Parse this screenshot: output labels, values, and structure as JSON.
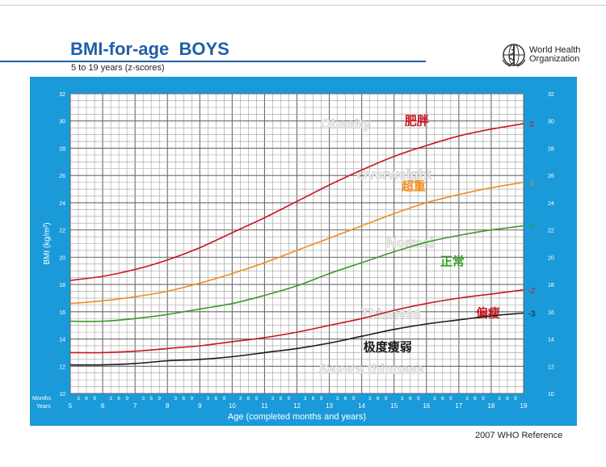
{
  "header": {
    "title": "BMI-for-age  BOYS",
    "subtitle": "5 to 19 years (z-scores)",
    "org_line1": "World Health",
    "org_line2": "Organization",
    "logo_icon": "who-emblem-icon"
  },
  "footer": {
    "reference": "2007  WHO Reference"
  },
  "colors": {
    "panel": "#1a9ad9",
    "grid": "#9e9e9e",
    "z2": "#c8161e",
    "z1": "#f28a1c",
    "z0": "#3a9a2a",
    "zm2": "#c8161e",
    "zm3": "#1a1a1a",
    "watermark": "#d0d0d0"
  },
  "chart_data": {
    "type": "line",
    "title": "BMI-for-age  BOYS",
    "subtitle": "5 to 19 years (z-scores)",
    "xlabel": "Age (completed months and years)",
    "ylabel": "BMI (kg/m²)",
    "xlim": [
      5,
      19
    ],
    "ylim": [
      10,
      32
    ],
    "grid": true,
    "x_ticks": [
      "5",
      "6",
      "7",
      "8",
      "9",
      "10",
      "11",
      "12",
      "13",
      "14",
      "15",
      "16",
      "17",
      "18",
      "19"
    ],
    "month_ticks": [
      "3",
      "6",
      "9"
    ],
    "y_ticks": [
      "10",
      "12",
      "14",
      "16",
      "18",
      "20",
      "22",
      "24",
      "26",
      "28",
      "30",
      "32"
    ],
    "row_label_months": "Months",
    "row_label_years": "Years",
    "x": [
      5,
      6,
      7,
      8,
      9,
      10,
      11,
      12,
      13,
      14,
      15,
      16,
      17,
      18,
      19
    ],
    "series": [
      {
        "name": "2",
        "label_cn": "肥胖",
        "color": "#c8161e",
        "values": [
          18.3,
          18.6,
          19.1,
          19.8,
          20.7,
          21.8,
          22.9,
          24.1,
          25.3,
          26.4,
          27.4,
          28.2,
          28.9,
          29.4,
          29.8
        ]
      },
      {
        "name": "1",
        "label_cn": "超重",
        "color": "#f28a1c",
        "values": [
          16.6,
          16.8,
          17.1,
          17.5,
          18.1,
          18.8,
          19.6,
          20.5,
          21.4,
          22.3,
          23.2,
          24.0,
          24.6,
          25.1,
          25.5
        ]
      },
      {
        "name": "0",
        "label_cn": "正常",
        "color": "#3a9a2a",
        "values": [
          15.3,
          15.3,
          15.5,
          15.8,
          16.2,
          16.6,
          17.2,
          17.9,
          18.8,
          19.6,
          20.4,
          21.1,
          21.6,
          22.0,
          22.3
        ]
      },
      {
        "name": "-2",
        "label_cn": "偏瘦",
        "color": "#c8161e",
        "values": [
          13.0,
          13.0,
          13.1,
          13.3,
          13.5,
          13.8,
          14.1,
          14.5,
          15.0,
          15.5,
          16.1,
          16.6,
          17.0,
          17.3,
          17.6
        ]
      },
      {
        "name": "-3",
        "label_cn": "极度瘦弱",
        "color": "#1a1a1a",
        "values": [
          12.1,
          12.1,
          12.2,
          12.4,
          12.5,
          12.7,
          13.0,
          13.3,
          13.7,
          14.2,
          14.7,
          15.1,
          15.4,
          15.7,
          15.9
        ]
      }
    ],
    "watermarks": [
      "Obesity",
      "Overweight",
      "Normal",
      "Thinness",
      "Severe thinness"
    ]
  }
}
